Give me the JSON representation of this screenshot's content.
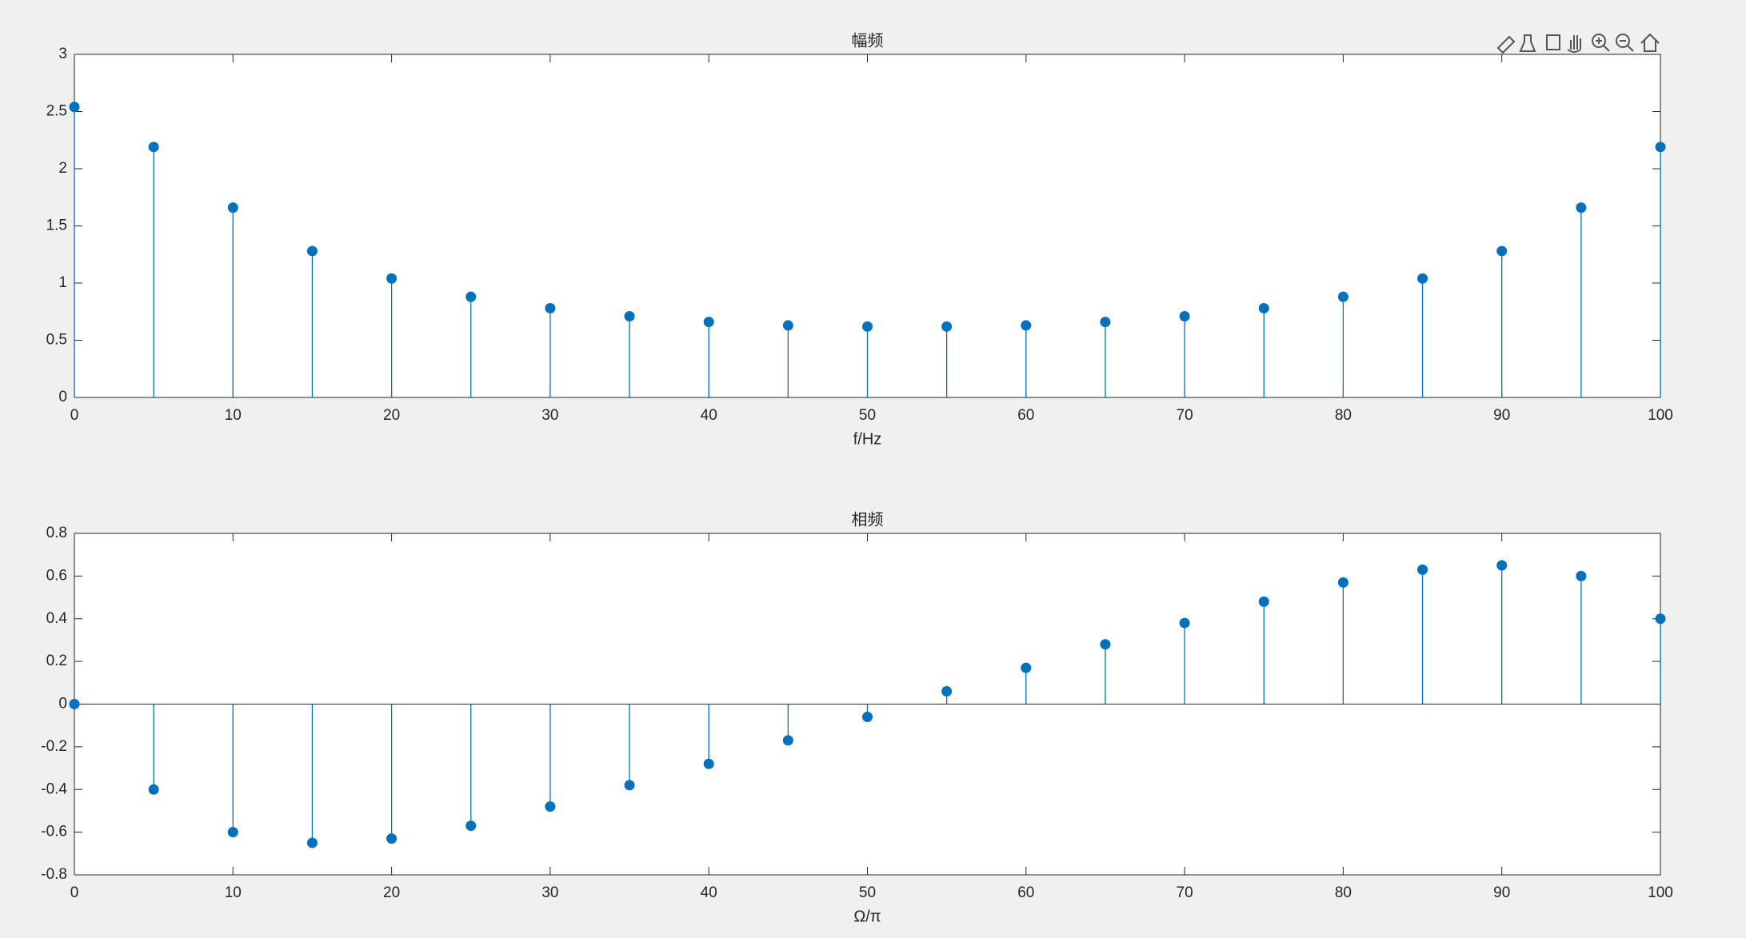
{
  "chart_data": [
    {
      "type": "stem",
      "title": "幅频",
      "xlabel": "f/Hz",
      "color": "#0072bd",
      "x": [
        0,
        5,
        10,
        15,
        20,
        25,
        30,
        35,
        40,
        45,
        50,
        55,
        60,
        65,
        70,
        75,
        80,
        85,
        90,
        95,
        100
      ],
      "values": [
        2.54,
        2.19,
        1.66,
        1.28,
        1.04,
        0.88,
        0.78,
        0.71,
        0.66,
        0.63,
        0.62,
        0.62,
        0.63,
        0.66,
        0.71,
        0.78,
        0.88,
        1.04,
        1.28,
        1.66,
        2.19
      ],
      "xlim": [
        0,
        100
      ],
      "xticks": [
        0,
        10,
        20,
        30,
        40,
        50,
        60,
        70,
        80,
        90,
        100
      ],
      "ylim": [
        0,
        3
      ],
      "yticks": [
        0,
        0.5,
        1,
        1.5,
        2,
        2.5,
        3
      ]
    },
    {
      "type": "stem",
      "title": "相频",
      "xlabel": "Ω/π",
      "color": "#0072bd",
      "x": [
        0,
        5,
        10,
        15,
        20,
        25,
        30,
        35,
        40,
        45,
        50,
        55,
        60,
        65,
        70,
        75,
        80,
        85,
        90,
        95,
        100
      ],
      "values": [
        0,
        -0.4,
        -0.6,
        -0.65,
        -0.63,
        -0.57,
        -0.48,
        -0.38,
        -0.28,
        -0.17,
        -0.06,
        0.06,
        0.17,
        0.28,
        0.38,
        0.48,
        0.57,
        0.63,
        0.65,
        0.6,
        0.4
      ],
      "xlim": [
        0,
        100
      ],
      "xticks": [
        0,
        10,
        20,
        30,
        40,
        50,
        60,
        70,
        80,
        90,
        100
      ],
      "ylim": [
        -0.8,
        0.8
      ],
      "yticks": [
        -0.8,
        -0.6,
        -0.4,
        -0.2,
        0,
        0.2,
        0.4,
        0.6,
        0.8
      ]
    }
  ]
}
